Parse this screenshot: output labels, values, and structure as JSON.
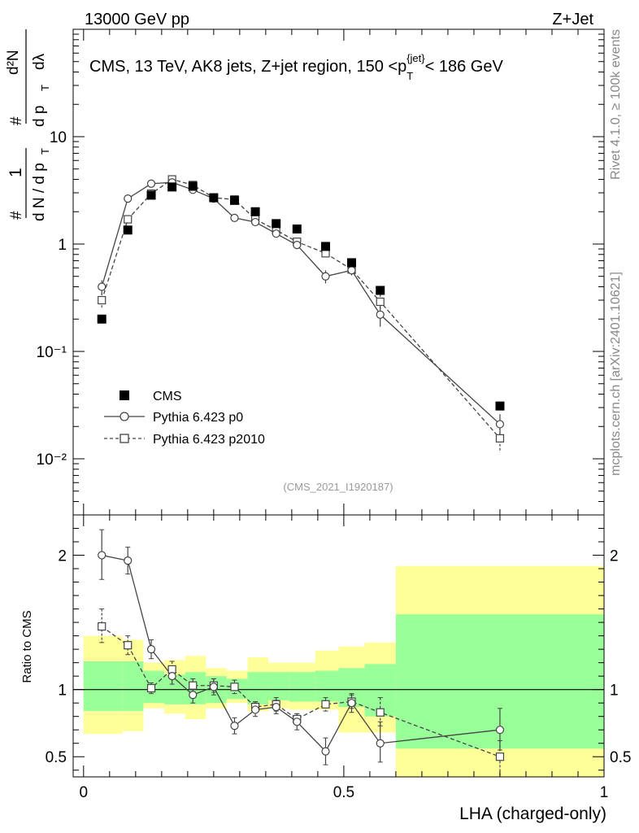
{
  "header": {
    "energy_label": "13000 GeV pp",
    "process_label": "Z+Jet"
  },
  "side_labels": {
    "rivet": "Rivet 4.1.0, ≥ 100k events",
    "mcplots": "mcplots.cern.ch [arXiv:2401.10621]"
  },
  "chart_data": [
    {
      "type": "scatter",
      "panel": "main",
      "title": "CMS, 13 TeV, AK8 jets, Z+jet region, 150 <p_T^{jet}< 186 GeV",
      "title_parts": {
        "main": "CMS, 13 TeV, AK8 jets, Z+jet region, 150 <p",
        "sub": "T",
        "sup": "{jet}",
        "tail": "< 186 GeV"
      },
      "ylabel": "1/N dN/dp_T d²N/dp_T dλ",
      "ylabel_parts": {
        "hash1": "#",
        "one": "1",
        "dn": "d N / d p",
        "t": "T",
        "hash2": "#",
        "d2n": "d²N",
        "dpt": "d p",
        "dl": "dλ"
      },
      "yscale": "log",
      "ylim": [
        0.003,
        100
      ],
      "xlim": [
        -0.02,
        1.0
      ],
      "ytick_labels": [
        "10⁻²",
        "10⁻¹",
        "1",
        "10"
      ],
      "analysis_id": "(CMS_2021_I1920187)",
      "legend_position": "bottom-left",
      "legend": [
        "CMS",
        "Pythia 6.423 p0",
        "Pythia 6.423 p2010"
      ],
      "x": [
        0.035,
        0.085,
        0.13,
        0.17,
        0.21,
        0.25,
        0.29,
        0.33,
        0.37,
        0.41,
        0.465,
        0.515,
        0.57,
        0.8
      ],
      "series": [
        {
          "name": "CMS",
          "marker": "filled-square",
          "values": [
            0.2,
            1.35,
            2.85,
            3.4,
            3.45,
            2.7,
            2.55,
            2.0,
            1.55,
            1.38,
            0.95,
            0.67,
            0.37,
            0.031
          ]
        },
        {
          "name": "Pythia 6.423 p0",
          "marker": "open-circle",
          "line": "solid",
          "values": [
            0.4,
            2.65,
            3.65,
            3.75,
            3.2,
            2.65,
            1.75,
            1.6,
            1.25,
            0.98,
            0.5,
            0.57,
            0.22,
            0.021
          ],
          "errors": [
            0.06,
            0.1,
            0.1,
            0.1,
            0.1,
            0.1,
            0.1,
            0.1,
            0.1,
            0.08,
            0.07,
            0.06,
            0.05,
            0.005
          ]
        },
        {
          "name": "Pythia 6.423 p2010",
          "marker": "open-square",
          "line": "dashed",
          "values": [
            0.3,
            1.7,
            2.95,
            4.0,
            3.55,
            2.7,
            2.6,
            1.7,
            1.35,
            1.05,
            0.82,
            0.58,
            0.29,
            0.0155
          ],
          "errors": [
            0.05,
            0.1,
            0.1,
            0.1,
            0.1,
            0.1,
            0.1,
            0.1,
            0.1,
            0.08,
            0.07,
            0.06,
            0.05,
            0.004
          ]
        }
      ]
    },
    {
      "type": "scatter",
      "panel": "ratio",
      "ylabel": "Ratio to CMS",
      "xlabel": "LHA (charged-only)",
      "ylim": [
        0.35,
        2.3
      ],
      "xlim": [
        -0.02,
        1.0
      ],
      "xtick_labels": [
        "0",
        "0.5",
        "1"
      ],
      "ytick_labels": [
        "0.5",
        "1",
        "2"
      ],
      "bands": [
        {
          "x": [
            0.0,
            0.075
          ],
          "inner": [
            0.84,
            1.21
          ],
          "outer": [
            0.67,
            1.4
          ]
        },
        {
          "x": [
            0.075,
            0.115
          ],
          "inner": [
            0.84,
            1.21
          ],
          "outer": [
            0.69,
            1.37
          ]
        },
        {
          "x": [
            0.115,
            0.155
          ],
          "inner": [
            0.9,
            1.14
          ],
          "outer": [
            0.86,
            1.2
          ]
        },
        {
          "x": [
            0.155,
            0.195
          ],
          "inner": [
            0.89,
            1.11
          ],
          "outer": [
            0.82,
            1.22
          ]
        },
        {
          "x": [
            0.195,
            0.235
          ],
          "inner": [
            0.89,
            1.13
          ],
          "outer": [
            0.78,
            1.25
          ]
        },
        {
          "x": [
            0.235,
            0.275
          ],
          "inner": [
            0.9,
            1.1
          ],
          "outer": [
            0.86,
            1.16
          ]
        },
        {
          "x": [
            0.275,
            0.315
          ],
          "inner": [
            0.93,
            1.08
          ],
          "outer": [
            0.9,
            1.14
          ]
        },
        {
          "x": [
            0.315,
            0.355
          ],
          "inner": [
            0.89,
            1.13
          ],
          "outer": [
            0.84,
            1.24
          ]
        },
        {
          "x": [
            0.355,
            0.395
          ],
          "inner": [
            0.92,
            1.13
          ],
          "outer": [
            0.86,
            1.2
          ]
        },
        {
          "x": [
            0.395,
            0.445
          ],
          "inner": [
            0.91,
            1.13
          ],
          "outer": [
            0.85,
            1.2
          ]
        },
        {
          "x": [
            0.445,
            0.49
          ],
          "inner": [
            0.91,
            1.14
          ],
          "outer": [
            0.85,
            1.29
          ]
        },
        {
          "x": [
            0.49,
            0.54
          ],
          "inner": [
            0.87,
            1.16
          ],
          "outer": [
            0.68,
            1.32
          ]
        },
        {
          "x": [
            0.54,
            0.6
          ],
          "inner": [
            0.8,
            1.19
          ],
          "outer": [
            0.68,
            1.35
          ]
        },
        {
          "x": [
            0.6,
            1.0
          ],
          "inner": [
            0.56,
            1.56
          ],
          "outer": [
            0.28,
            1.92
          ]
        }
      ],
      "series": [
        {
          "name": "Pythia 6.423 p0",
          "values": [
            2.0,
            1.96,
            1.3,
            1.1,
            0.96,
            1.02,
            0.73,
            0.85,
            0.87,
            0.76,
            0.54,
            0.9,
            0.6,
            0.7
          ],
          "err_up": [
            0.19,
            0.1,
            0.07,
            0.06,
            0.06,
            0.06,
            0.06,
            0.05,
            0.05,
            0.06,
            0.1,
            0.07,
            0.16,
            0.16
          ],
          "err_dn": [
            0.18,
            0.1,
            0.07,
            0.06,
            0.06,
            0.06,
            0.06,
            0.05,
            0.05,
            0.06,
            0.1,
            0.07,
            0.14,
            0.15
          ]
        },
        {
          "name": "Pythia 6.423 p2010",
          "values": [
            1.47,
            1.33,
            1.01,
            1.15,
            1.03,
            1.03,
            1.02,
            0.87,
            0.89,
            0.78,
            0.89,
            0.91,
            0.83,
            0.5
          ],
          "err_up": [
            0.13,
            0.07,
            0.04,
            0.06,
            0.05,
            0.05,
            0.05,
            0.04,
            0.05,
            0.04,
            0.05,
            0.05,
            0.11,
            0.12
          ],
          "err_dn": [
            0.12,
            0.07,
            0.04,
            0.06,
            0.05,
            0.05,
            0.05,
            0.04,
            0.05,
            0.04,
            0.05,
            0.05,
            0.1,
            0.15
          ]
        }
      ]
    }
  ],
  "colors": {
    "inner_band": "#99ff99",
    "outer_band": "#ffff99",
    "cms": "#000000",
    "mc": "#444444",
    "analysis_id": "#999999"
  }
}
